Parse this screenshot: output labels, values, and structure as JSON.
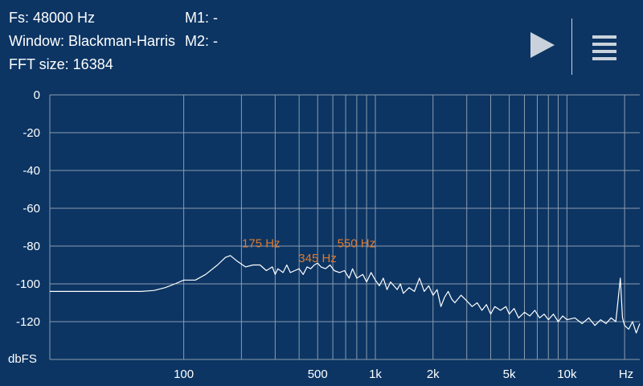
{
  "info": {
    "fs": "Fs: 48000 Hz",
    "window": "Window: Blackman-Harris",
    "fft": "FFT size: 16384",
    "m1": "M1: -",
    "m2": "M2: -"
  },
  "toolbar": {
    "play_icon": "play-icon",
    "menu_icon": "hamburger-menu-icon"
  },
  "colors": {
    "background": "#0c3563",
    "grid": "#8c9caf",
    "trace": "#ffffff",
    "peak_label": "#e07a2e"
  },
  "chart_data": {
    "type": "line",
    "x_scale": "log",
    "xlim": [
      20,
      24000
    ],
    "ylim": [
      -140,
      0
    ],
    "ylabel": "dbFS",
    "xlabel": "Hz",
    "y_ticks": [
      0,
      -20,
      -40,
      -60,
      -80,
      -100,
      -120
    ],
    "y_tick_labels": [
      "0",
      "-20",
      "-40",
      "-60",
      "-80",
      "-100",
      "-120"
    ],
    "x_grid": [
      100,
      200,
      300,
      400,
      500,
      600,
      700,
      800,
      900,
      1000,
      2000,
      3000,
      4000,
      5000,
      6000,
      7000,
      8000,
      9000,
      10000,
      20000
    ],
    "x_ticks": [
      100,
      500,
      1000,
      2000,
      5000,
      10000
    ],
    "x_tick_labels": [
      "100",
      "500",
      "1k",
      "2k",
      "5k",
      "10k"
    ],
    "peaks": [
      {
        "freq": 175,
        "db": -84,
        "label": "175 Hz"
      },
      {
        "freq": 345,
        "db": -92,
        "label": "345 Hz"
      },
      {
        "freq": 550,
        "db": -84,
        "label": "550 Hz"
      }
    ],
    "series": [
      {
        "points": [
          [
            20,
            -104
          ],
          [
            40,
            -104
          ],
          [
            60,
            -104
          ],
          [
            70,
            -103.5
          ],
          [
            80,
            -102
          ],
          [
            90,
            -100
          ],
          [
            100,
            -98
          ],
          [
            115,
            -98
          ],
          [
            130,
            -95
          ],
          [
            150,
            -90
          ],
          [
            165,
            -86
          ],
          [
            175,
            -85
          ],
          [
            190,
            -88
          ],
          [
            210,
            -91
          ],
          [
            230,
            -90
          ],
          [
            250,
            -90
          ],
          [
            270,
            -93
          ],
          [
            290,
            -91
          ],
          [
            300,
            -95
          ],
          [
            310,
            -92
          ],
          [
            330,
            -94
          ],
          [
            345,
            -90
          ],
          [
            360,
            -94
          ],
          [
            380,
            -93
          ],
          [
            400,
            -92
          ],
          [
            420,
            -95
          ],
          [
            440,
            -91
          ],
          [
            460,
            -92
          ],
          [
            480,
            -90
          ],
          [
            500,
            -89
          ],
          [
            520,
            -91
          ],
          [
            550,
            -92
          ],
          [
            580,
            -90
          ],
          [
            610,
            -93
          ],
          [
            650,
            -94
          ],
          [
            690,
            -93
          ],
          [
            730,
            -97
          ],
          [
            760,
            -92
          ],
          [
            800,
            -97
          ],
          [
            860,
            -95
          ],
          [
            900,
            -99
          ],
          [
            950,
            -94
          ],
          [
            1000,
            -98
          ],
          [
            1050,
            -101
          ],
          [
            1100,
            -97
          ],
          [
            1150,
            -103
          ],
          [
            1200,
            -99
          ],
          [
            1300,
            -103
          ],
          [
            1350,
            -100
          ],
          [
            1400,
            -105
          ],
          [
            1500,
            -102
          ],
          [
            1600,
            -104
          ],
          [
            1700,
            -97
          ],
          [
            1800,
            -104
          ],
          [
            1900,
            -101
          ],
          [
            2000,
            -106
          ],
          [
            2100,
            -103
          ],
          [
            2200,
            -112
          ],
          [
            2300,
            -107
          ],
          [
            2400,
            -104
          ],
          [
            2500,
            -108
          ],
          [
            2600,
            -110
          ],
          [
            2800,
            -106
          ],
          [
            3000,
            -109
          ],
          [
            3200,
            -112
          ],
          [
            3400,
            -110
          ],
          [
            3600,
            -114
          ],
          [
            3800,
            -111
          ],
          [
            4000,
            -116
          ],
          [
            4200,
            -112
          ],
          [
            4500,
            -114
          ],
          [
            4800,
            -112
          ],
          [
            5000,
            -116
          ],
          [
            5300,
            -113
          ],
          [
            5600,
            -118
          ],
          [
            6000,
            -115
          ],
          [
            6400,
            -117
          ],
          [
            6800,
            -114
          ],
          [
            7200,
            -118
          ],
          [
            7600,
            -116
          ],
          [
            8000,
            -119
          ],
          [
            8500,
            -116
          ],
          [
            9000,
            -120
          ],
          [
            9500,
            -117
          ],
          [
            10000,
            -119
          ],
          [
            11000,
            -118
          ],
          [
            12000,
            -121
          ],
          [
            13000,
            -118
          ],
          [
            14000,
            -122
          ],
          [
            15000,
            -119
          ],
          [
            16000,
            -121
          ],
          [
            17000,
            -118
          ],
          [
            18000,
            -120
          ],
          [
            19000,
            -97
          ],
          [
            19500,
            -118
          ],
          [
            20000,
            -122
          ],
          [
            21000,
            -124
          ],
          [
            22000,
            -120
          ],
          [
            23000,
            -126
          ],
          [
            24000,
            -121
          ]
        ]
      }
    ]
  }
}
